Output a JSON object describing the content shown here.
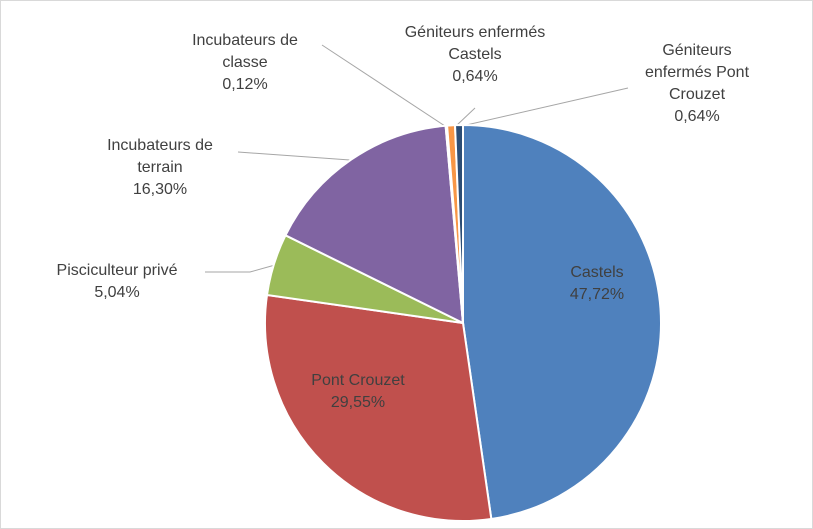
{
  "chart_data": {
    "type": "pie",
    "categories": [
      "Castels",
      "Pont Crouzet",
      "Pisciculteur privé",
      "Incubateurs de terrain",
      "Incubateurs de classe",
      "Géniteurs enfermés Castels",
      "Géniteurs enfermés Pont Crouzet"
    ],
    "values": [
      47.72,
      29.55,
      5.04,
      16.3,
      0.12,
      0.64,
      0.64
    ],
    "value_labels": [
      "47,72%",
      "29,55%",
      "5,04%",
      "16,30%",
      "0,12%",
      "0,64%",
      "0,64%"
    ],
    "colors": [
      "#4f81bd",
      "#c0504d",
      "#9bbb59",
      "#8064a2",
      "#4bacc6",
      "#f79646",
      "#2c4d75"
    ]
  }
}
